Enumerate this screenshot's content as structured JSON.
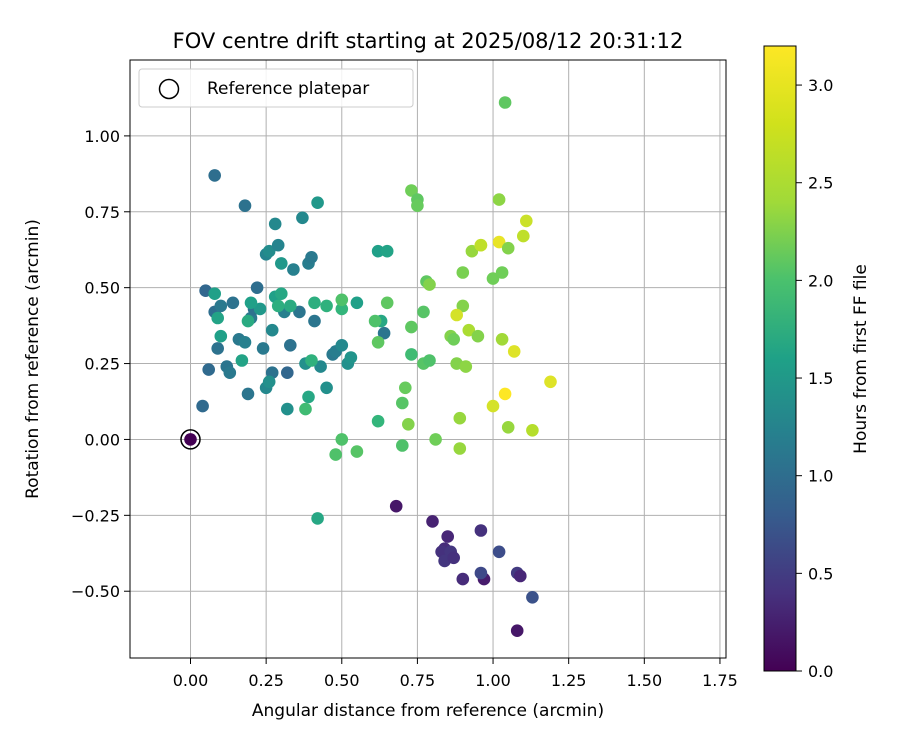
{
  "chart_data": {
    "type": "scatter",
    "title": "FOV centre drift starting at 2025/08/12 20:31:12",
    "xlabel": "Angular distance from reference (arcmin)",
    "ylabel": "Rotation from reference (arcmin)",
    "xlim": [
      -0.2,
      1.77
    ],
    "ylim": [
      -0.72,
      1.25
    ],
    "xticks": [
      "0.00",
      "0.25",
      "0.50",
      "0.75",
      "1.00",
      "1.25",
      "1.50",
      "1.75"
    ],
    "yticks": [
      "−0.50",
      "−0.25",
      "0.00",
      "0.25",
      "0.50",
      "0.75",
      "1.00"
    ],
    "grid": true,
    "legend": {
      "position": "top-left",
      "label": "Reference platepar"
    },
    "reference_point": [
      0.0,
      0.0
    ],
    "colorbar": {
      "label": "Hours from first FF file",
      "colormap": "viridis",
      "range": [
        0.0,
        3.2
      ],
      "ticks": [
        "0.0",
        "0.5",
        "1.0",
        "1.5",
        "2.0",
        "2.5",
        "3.0"
      ]
    },
    "points": [
      [
        0.0,
        0.0,
        0.0
      ],
      [
        0.68,
        -0.22,
        0.2
      ],
      [
        0.8,
        -0.27,
        0.3
      ],
      [
        0.84,
        -0.36,
        0.4
      ],
      [
        0.85,
        -0.32,
        0.35
      ],
      [
        0.83,
        -0.37,
        0.45
      ],
      [
        0.86,
        -0.37,
        0.5
      ],
      [
        0.84,
        -0.4,
        0.5
      ],
      [
        0.87,
        -0.39,
        0.45
      ],
      [
        0.9,
        -0.46,
        0.4
      ],
      [
        0.96,
        -0.3,
        0.45
      ],
      [
        0.97,
        -0.46,
        0.25
      ],
      [
        0.96,
        -0.44,
        0.7
      ],
      [
        1.02,
        -0.37,
        0.75
      ],
      [
        1.08,
        -0.44,
        0.55
      ],
      [
        1.09,
        -0.45,
        0.35
      ],
      [
        1.08,
        -0.63,
        0.2
      ],
      [
        1.13,
        -0.52,
        0.8
      ],
      [
        0.08,
        0.87,
        1.15
      ],
      [
        0.18,
        0.77,
        1.2
      ],
      [
        0.04,
        0.11,
        1.1
      ],
      [
        0.05,
        0.49,
        1.05
      ],
      [
        0.06,
        0.23,
        1.1
      ],
      [
        0.08,
        0.42,
        1.15
      ],
      [
        0.09,
        0.3,
        1.2
      ],
      [
        0.1,
        0.44,
        1.3
      ],
      [
        0.12,
        0.24,
        1.25
      ],
      [
        0.13,
        0.22,
        1.3
      ],
      [
        0.14,
        0.45,
        1.2
      ],
      [
        0.16,
        0.33,
        1.3
      ],
      [
        0.18,
        0.32,
        1.4
      ],
      [
        0.19,
        0.15,
        1.25
      ],
      [
        0.2,
        0.4,
        1.3
      ],
      [
        0.21,
        0.43,
        1.2
      ],
      [
        0.22,
        0.5,
        1.15
      ],
      [
        0.24,
        0.3,
        1.3
      ],
      [
        0.25,
        0.61,
        1.45
      ],
      [
        0.26,
        0.62,
        1.55
      ],
      [
        0.27,
        0.22,
        1.2
      ],
      [
        0.28,
        0.71,
        1.5
      ],
      [
        0.29,
        0.64,
        1.45
      ],
      [
        0.3,
        0.58,
        1.7
      ],
      [
        0.31,
        0.42,
        1.4
      ],
      [
        0.32,
        0.22,
        1.05
      ],
      [
        0.33,
        0.31,
        1.2
      ],
      [
        0.34,
        0.56,
        1.4
      ],
      [
        0.36,
        0.42,
        1.25
      ],
      [
        0.37,
        0.73,
        1.5
      ],
      [
        0.38,
        0.25,
        1.6
      ],
      [
        0.39,
        0.58,
        1.35
      ],
      [
        0.4,
        0.6,
        1.3
      ],
      [
        0.41,
        0.39,
        1.25
      ],
      [
        0.42,
        0.78,
        1.7
      ],
      [
        0.43,
        0.24,
        1.5
      ],
      [
        0.45,
        0.17,
        1.6
      ],
      [
        0.47,
        0.28,
        1.3
      ],
      [
        0.48,
        0.29,
        1.35
      ],
      [
        0.5,
        0.31,
        1.5
      ],
      [
        0.52,
        0.25,
        1.6
      ],
      [
        0.53,
        0.27,
        1.65
      ],
      [
        0.55,
        0.45,
        1.8
      ],
      [
        0.62,
        0.62,
        1.8
      ],
      [
        0.63,
        0.39,
        1.9
      ],
      [
        0.64,
        0.35,
        1.25
      ],
      [
        0.65,
        0.62,
        1.85
      ],
      [
        0.25,
        0.17,
        1.5
      ],
      [
        0.26,
        0.19,
        1.6
      ],
      [
        0.27,
        0.36,
        1.5
      ],
      [
        0.23,
        0.43,
        1.7
      ],
      [
        0.17,
        0.26,
        1.85
      ],
      [
        0.1,
        0.34,
        1.8
      ],
      [
        0.08,
        0.48,
        1.8
      ],
      [
        0.09,
        0.4,
        1.85
      ],
      [
        0.28,
        0.47,
        1.8
      ],
      [
        0.3,
        0.48,
        1.9
      ],
      [
        0.33,
        0.44,
        1.95
      ],
      [
        0.39,
        0.14,
        1.9
      ],
      [
        0.32,
        0.1,
        1.6
      ],
      [
        0.41,
        0.45,
        2.0
      ],
      [
        0.45,
        0.44,
        2.05
      ],
      [
        0.5,
        0.43,
        2.1
      ],
      [
        0.19,
        0.39,
        1.95
      ],
      [
        0.2,
        0.45,
        1.8
      ],
      [
        0.29,
        0.44,
        2.0
      ],
      [
        0.4,
        0.26,
        2.05
      ],
      [
        0.42,
        -0.26,
        1.9
      ],
      [
        0.38,
        0.1,
        2.2
      ],
      [
        0.48,
        -0.05,
        2.3
      ],
      [
        0.5,
        0.0,
        2.3
      ],
      [
        0.55,
        -0.04,
        2.35
      ],
      [
        0.5,
        0.46,
        2.3
      ],
      [
        0.62,
        0.06,
        2.1
      ],
      [
        0.61,
        0.39,
        2.3
      ],
      [
        0.62,
        0.32,
        2.4
      ],
      [
        0.65,
        0.45,
        2.4
      ],
      [
        0.7,
        -0.02,
        2.3
      ],
      [
        0.7,
        0.12,
        2.35
      ],
      [
        0.71,
        0.17,
        2.45
      ],
      [
        0.72,
        0.05,
        2.6
      ],
      [
        0.73,
        0.37,
        2.4
      ],
      [
        0.73,
        0.28,
        2.2
      ],
      [
        0.73,
        0.82,
        2.5
      ],
      [
        0.75,
        0.79,
        2.4
      ],
      [
        0.75,
        0.77,
        2.45
      ],
      [
        0.77,
        0.42,
        2.35
      ],
      [
        0.78,
        0.52,
        2.4
      ],
      [
        0.77,
        0.25,
        2.35
      ],
      [
        0.79,
        0.26,
        2.3
      ],
      [
        0.79,
        0.51,
        2.6
      ],
      [
        0.81,
        0.0,
        2.5
      ],
      [
        0.86,
        0.34,
        2.6
      ],
      [
        0.87,
        0.33,
        2.5
      ],
      [
        0.88,
        0.25,
        2.6
      ],
      [
        0.89,
        -0.03,
        2.7
      ],
      [
        0.89,
        0.07,
        2.7
      ],
      [
        0.9,
        0.44,
        2.6
      ],
      [
        0.9,
        0.55,
        2.55
      ],
      [
        0.91,
        0.24,
        2.65
      ],
      [
        0.92,
        0.36,
        2.8
      ],
      [
        0.93,
        0.62,
        2.7
      ],
      [
        0.95,
        0.34,
        2.6
      ],
      [
        0.96,
        0.64,
        3.2
      ],
      [
        1.0,
        0.11,
        3.0
      ],
      [
        1.0,
        0.53,
        2.5
      ],
      [
        1.02,
        0.79,
        2.65
      ],
      [
        1.02,
        0.65,
        3.1
      ],
      [
        1.03,
        0.33,
        2.75
      ],
      [
        1.03,
        0.55,
        2.5
      ],
      [
        1.04,
        1.11,
        2.4
      ],
      [
        1.05,
        0.63,
        2.6
      ],
      [
        1.04,
        0.15,
        3.2
      ],
      [
        1.05,
        0.04,
        2.7
      ],
      [
        1.07,
        0.29,
        3.05
      ],
      [
        1.1,
        0.67,
        2.9
      ],
      [
        1.11,
        0.72,
        2.95
      ],
      [
        1.13,
        0.03,
        2.85
      ],
      [
        1.19,
        0.19,
        3.05
      ],
      [
        0.88,
        0.41,
        3.0
      ],
      [
        0.96,
        0.64,
        2.9
      ]
    ]
  }
}
